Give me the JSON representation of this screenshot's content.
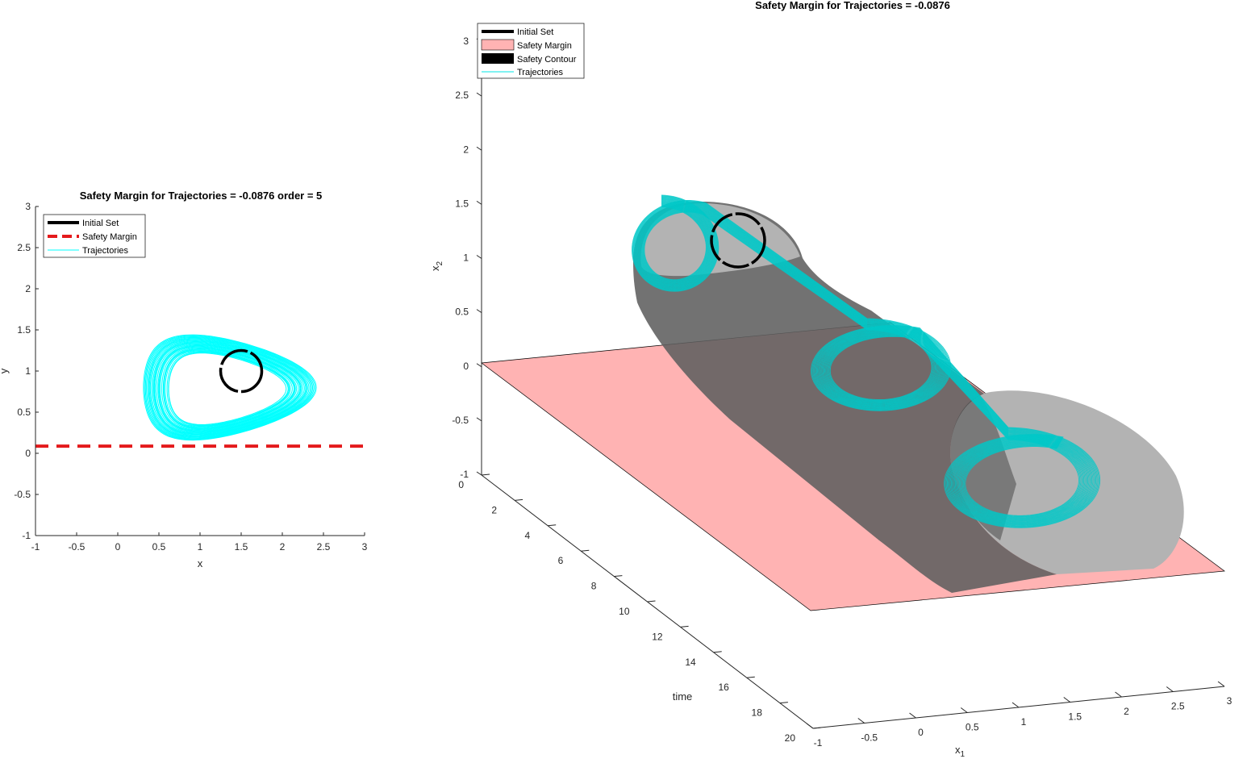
{
  "chart_data": [
    {
      "type": "line",
      "title": "Safety Margin for Trajectories = -0.0876 order = 5",
      "xlabel": "x",
      "ylabel": "y",
      "xlim": [
        -1,
        3
      ],
      "ylim": [
        -1,
        3
      ],
      "x_ticks": [
        "-1",
        "-0.5",
        "0",
        "0.5",
        "1",
        "1.5",
        "2",
        "2.5",
        "3"
      ],
      "y_ticks": [
        "-1",
        "-0.5",
        "0",
        "0.5",
        "1",
        "1.5",
        "2",
        "2.5",
        "3"
      ],
      "grid": false,
      "legend_position": "top-left",
      "legend": [
        {
          "label": "Initial Set",
          "color": "#000000",
          "style": "solid-thick"
        },
        {
          "label": "Safety Margin",
          "color": "#e41a1c",
          "style": "dashed"
        },
        {
          "label": "Trajectories",
          "color": "#00ffff",
          "style": "solid-thin"
        }
      ],
      "initial_set": {
        "center": [
          1.5,
          1.0
        ],
        "radius": 0.25
      },
      "safety_margin_y": 0.0876,
      "trajectory_orbit": {
        "x_range": [
          0.3,
          2.4
        ],
        "y_range": [
          0.12,
          1.38
        ],
        "count": 26
      }
    },
    {
      "type": "surface3d",
      "title": "Safety Margin for Trajectories = -0.0876",
      "xlabel": "x",
      "xlabel_sub": "1",
      "ylabel": "x",
      "ylabel_sub": "2",
      "zlabel": "time",
      "xlim": [
        -1,
        3
      ],
      "ylim": [
        -1,
        3
      ],
      "tlim": [
        0,
        20
      ],
      "x_ticks": [
        "-1",
        "-0.5",
        "0",
        "0.5",
        "1",
        "1.5",
        "2",
        "2.5",
        "3"
      ],
      "y_ticks": [
        "-1",
        "-0.5",
        "0",
        "0.5",
        "1",
        "1.5",
        "2",
        "2.5",
        "3"
      ],
      "t_ticks": [
        "0",
        "2",
        "4",
        "6",
        "8",
        "10",
        "12",
        "14",
        "16",
        "18",
        "20"
      ],
      "grid": false,
      "legend_position": "top-left",
      "legend": [
        {
          "label": "Initial Set",
          "color": "#000000",
          "style": "line"
        },
        {
          "label": "Safety Margin",
          "color": "#ffb3b3",
          "style": "patch"
        },
        {
          "label": "Safety Contour",
          "color": "#000000",
          "style": "patch"
        },
        {
          "label": "Trajectories",
          "color": "#00e5e5",
          "style": "line"
        }
      ],
      "colors": {
        "plane": "#ffb3b3",
        "tube": "#7a7a7a",
        "tube_light": "#b3b3b3",
        "trajectory": "#00c8c8"
      }
    }
  ]
}
